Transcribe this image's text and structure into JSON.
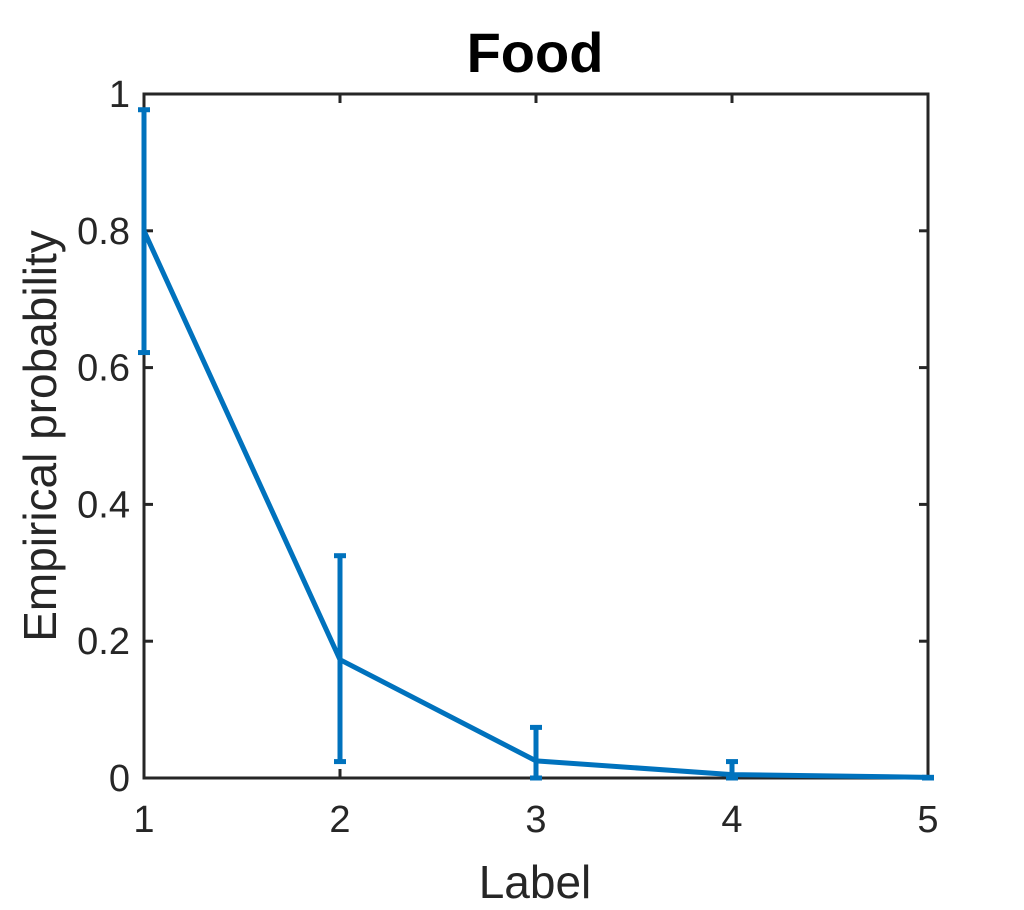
{
  "chart_data": {
    "type": "line",
    "title": "Food",
    "xlabel": "Label",
    "ylabel": "Empirical probability",
    "xlim": [
      1,
      5
    ],
    "ylim": [
      0,
      1
    ],
    "x_ticks": [
      "1",
      "2",
      "3",
      "4",
      "5"
    ],
    "y_ticks": [
      "0",
      "0.2",
      "0.4",
      "0.6",
      "0.8",
      "1"
    ],
    "grid": false,
    "series": [
      {
        "color": "#0072BD",
        "x": [
          1,
          2,
          3,
          4,
          5
        ],
        "y": [
          0.8,
          0.173,
          0.025,
          0.005,
          0.001
        ],
        "error_low": [
          0.622,
          0.024,
          0.0,
          0.0,
          0.0
        ],
        "error_high": [
          0.977,
          0.325,
          0.074,
          0.024,
          0.001
        ]
      }
    ],
    "colors": {
      "axis": "#262626",
      "title": "#000000",
      "line": "#0072BD"
    }
  }
}
